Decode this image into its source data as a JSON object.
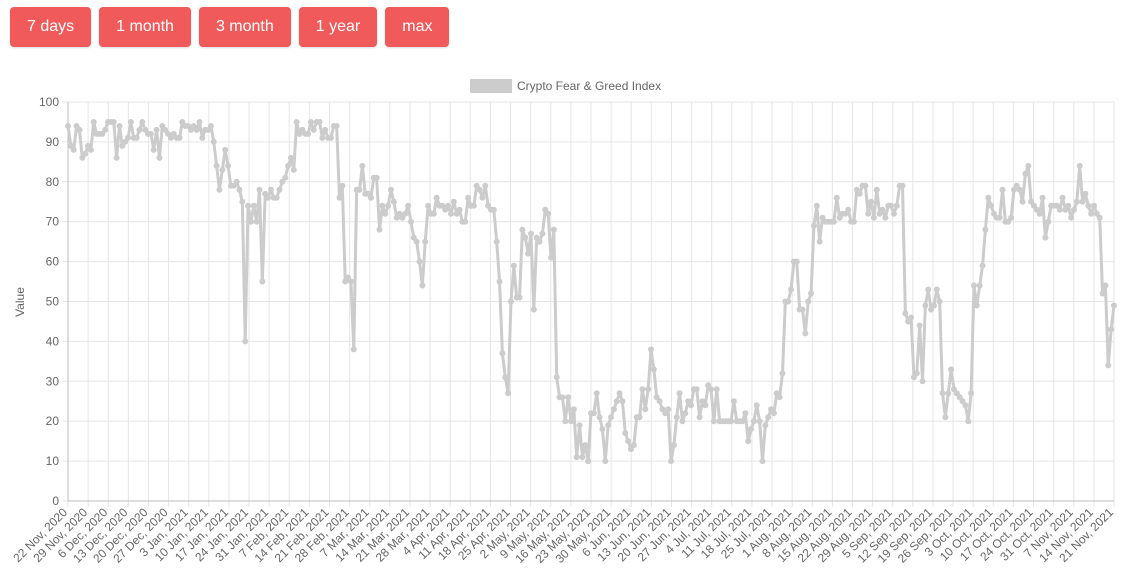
{
  "range_buttons": [
    "7 days",
    "1 month",
    "3 month",
    "1 year",
    "max"
  ],
  "colors": {
    "button": "#f05a5a",
    "series": "#cccccc",
    "grid": "#e6e6e6",
    "text": "#666666"
  },
  "chart_data": {
    "type": "line",
    "legend": {
      "position": "top",
      "label": "Crypto Fear & Greed Index"
    },
    "ylabel": "Value",
    "xlabel": "",
    "ylim": [
      0,
      100
    ],
    "yticks": [
      0,
      10,
      20,
      30,
      40,
      50,
      60,
      70,
      80,
      90,
      100
    ],
    "grid": true,
    "xtick_labels": [
      "22 Nov, 2020",
      "29 Nov, 2020",
      "6 Dec, 2020",
      "13 Dec, 2020",
      "20 Dec, 2020",
      "27 Dec, 2020",
      "3 Jan, 2021",
      "10 Jan, 2021",
      "17 Jan, 2021",
      "24 Jan, 2021",
      "31 Jan, 2021",
      "7 Feb, 2021",
      "14 Feb, 2021",
      "21 Feb, 2021",
      "28 Feb, 2021",
      "7 Mar, 2021",
      "14 Mar, 2021",
      "21 Mar, 2021",
      "28 Mar, 2021",
      "4 Apr, 2021",
      "11 Apr, 2021",
      "18 Apr, 2021",
      "25 Apr, 2021",
      "2 May, 2021",
      "9 May, 2021",
      "16 May, 2021",
      "23 May, 2021",
      "30 May, 2021",
      "6 Jun, 2021",
      "13 Jun, 2021",
      "20 Jun, 2021",
      "27 Jun, 2021",
      "4 Jul, 2021",
      "11 Jul, 2021",
      "18 Jul, 2021",
      "25 Jul, 2021",
      "1 Aug, 2021",
      "8 Aug, 2021",
      "15 Aug, 2021",
      "22 Aug, 2021",
      "29 Aug, 2021",
      "5 Sep, 2021",
      "12 Sep, 2021",
      "19 Sep, 2021",
      "26 Sep, 2021",
      "3 Oct, 2021",
      "10 Oct, 2021",
      "17 Oct, 2021",
      "24 Oct, 2021",
      "31 Oct, 2021",
      "7 Nov, 2021",
      "14 Nov, 2021",
      "21 Nov, 2021"
    ],
    "series": [
      {
        "values": [
          94,
          89,
          88,
          94,
          93,
          86,
          87,
          89,
          88,
          95,
          92,
          92,
          92,
          93,
          95,
          95,
          95,
          86,
          94,
          89,
          90,
          91,
          95,
          91,
          91,
          93,
          95,
          93,
          92,
          92,
          88,
          93,
          86,
          94,
          93,
          92,
          91,
          92,
          91,
          91,
          95,
          94,
          94,
          93,
          94,
          93,
          95,
          91,
          93,
          93,
          94,
          90,
          84,
          78,
          83,
          88,
          84,
          79,
          79,
          80,
          78,
          75,
          40,
          74,
          70,
          74,
          70,
          78,
          55,
          77,
          76,
          78,
          76,
          76,
          78,
          80,
          81,
          84,
          86,
          83,
          95,
          92,
          93,
          92,
          92,
          95,
          93,
          95,
          95,
          91,
          93,
          91,
          91,
          94,
          94,
          76,
          79,
          55,
          56,
          55,
          38,
          78,
          78,
          84,
          77,
          77,
          76,
          81,
          81,
          68,
          74,
          72,
          74,
          78,
          75,
          71,
          72,
          71,
          72,
          74,
          70,
          66,
          65,
          60,
          54,
          65,
          74,
          72,
          72,
          76,
          74,
          74,
          73,
          74,
          72,
          75,
          72,
          73,
          70,
          70,
          76,
          74,
          74,
          79,
          78,
          76,
          79,
          74,
          73,
          73,
          65,
          55,
          37,
          31,
          27,
          50,
          59,
          51,
          51,
          68,
          66,
          62,
          67,
          48,
          66,
          65,
          67,
          73,
          72,
          61,
          68,
          31,
          26,
          26,
          20,
          26,
          20,
          23,
          11,
          19,
          11,
          14,
          10,
          22,
          22,
          27,
          21,
          18,
          10,
          19,
          21,
          23,
          25,
          27,
          25,
          17,
          15,
          13,
          14,
          21,
          21,
          28,
          23,
          28,
          38,
          33,
          26,
          25,
          23,
          22,
          23,
          10,
          14,
          21,
          27,
          20,
          22,
          25,
          24,
          28,
          28,
          21,
          25,
          24,
          29,
          28,
          20,
          28,
          20,
          20,
          20,
          20,
          20,
          25,
          20,
          20,
          20,
          22,
          15,
          18,
          20,
          24,
          20,
          10,
          19,
          21,
          23,
          22,
          27,
          26,
          32,
          50,
          50,
          53,
          60,
          60,
          48,
          48,
          42,
          50,
          52,
          69,
          74,
          65,
          71,
          70,
          70,
          70,
          70,
          76,
          71,
          72,
          72,
          73,
          70,
          70,
          78,
          77,
          79,
          79,
          72,
          75,
          71,
          78,
          72,
          73,
          71,
          74,
          74,
          72,
          74,
          79,
          79,
          47,
          45,
          46,
          31,
          32,
          44,
          30,
          49,
          53,
          48,
          49,
          53,
          50,
          27,
          21,
          27,
          33,
          28,
          27,
          26,
          25,
          24,
          20,
          27,
          54,
          49,
          54,
          59,
          68,
          76,
          74,
          72,
          71,
          71,
          78,
          70,
          70,
          71,
          78,
          79,
          78,
          75,
          82,
          84,
          75,
          74,
          73,
          72,
          76,
          66,
          70,
          74,
          74,
          74,
          73,
          76,
          73,
          74,
          71,
          73,
          75,
          84,
          75,
          77,
          74,
          72,
          74,
          72,
          71,
          52,
          54,
          34,
          43,
          49
        ]
      }
    ]
  }
}
